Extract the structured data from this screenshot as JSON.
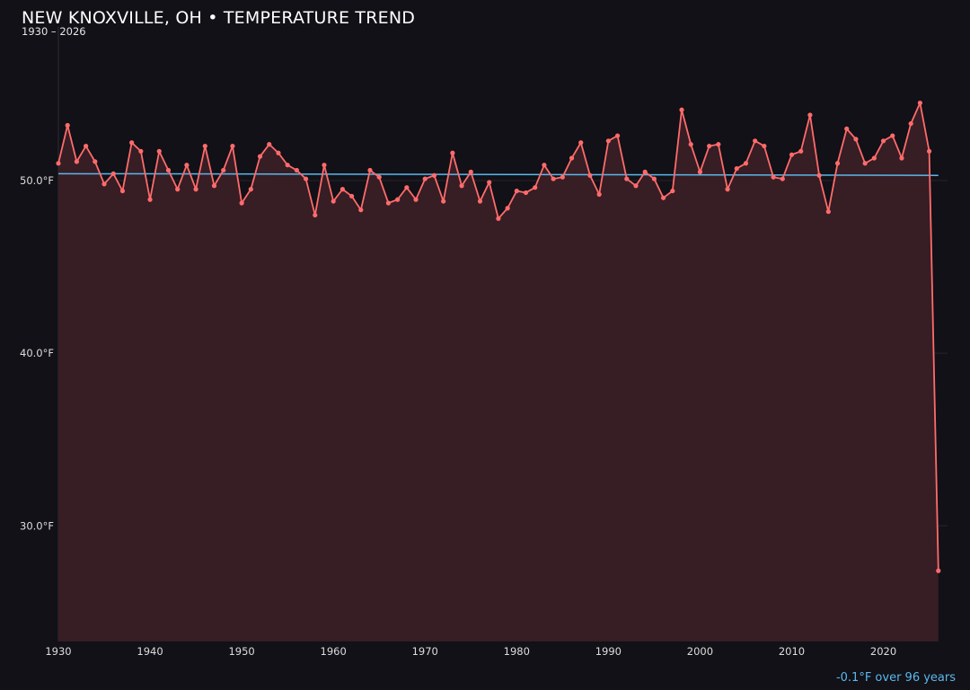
{
  "chart_data": {
    "type": "line",
    "title": "NEW KNOXVILLE, OH • TEMPERATURE TREND",
    "subtitle": "1930 – 2026",
    "annotation": "-0.1°F over 96 years",
    "xlabel": "",
    "ylabel": "",
    "xlim": [
      1930,
      2027
    ],
    "ylim": [
      23.3,
      58.9
    ],
    "x_ticks": [
      1930,
      1940,
      1950,
      1960,
      1970,
      1980,
      1990,
      2000,
      2010,
      2020
    ],
    "y_ticks": [
      30,
      40,
      50
    ],
    "y_tick_labels": [
      "30.0°F",
      "40.0°F",
      "50.0°F"
    ],
    "grid": true,
    "colors": {
      "series": "#ff6b6b",
      "fill": "#3a1f25",
      "trend": "#5bb8ec",
      "background": "#111117"
    },
    "x": [
      1930,
      1931,
      1932,
      1933,
      1934,
      1935,
      1936,
      1937,
      1938,
      1939,
      1940,
      1941,
      1942,
      1943,
      1944,
      1945,
      1946,
      1947,
      1948,
      1949,
      1950,
      1951,
      1952,
      1953,
      1954,
      1955,
      1956,
      1957,
      1958,
      1959,
      1960,
      1961,
      1962,
      1963,
      1964,
      1965,
      1966,
      1967,
      1968,
      1969,
      1970,
      1971,
      1972,
      1973,
      1974,
      1975,
      1976,
      1977,
      1978,
      1979,
      1980,
      1981,
      1982,
      1983,
      1984,
      1985,
      1986,
      1987,
      1988,
      1989,
      1990,
      1991,
      1992,
      1993,
      1994,
      1995,
      1996,
      1997,
      1998,
      1999,
      2000,
      2001,
      2002,
      2003,
      2004,
      2005,
      2006,
      2007,
      2008,
      2009,
      2010,
      2011,
      2012,
      2013,
      2014,
      2015,
      2016,
      2017,
      2018,
      2019,
      2020,
      2021,
      2022,
      2023,
      2024,
      2025,
      2026
    ],
    "series": [
      {
        "values": [
          51.0,
          53.2,
          51.1,
          52.0,
          51.1,
          49.8,
          50.4,
          49.4,
          52.2,
          51.7,
          48.9,
          51.7,
          50.6,
          49.5,
          50.9,
          49.5,
          52.0,
          49.7,
          50.6,
          52.0,
          48.7,
          49.5,
          51.4,
          52.1,
          51.6,
          50.9,
          50.6,
          50.1,
          48.0,
          50.9,
          48.8,
          49.5,
          49.1,
          48.3,
          50.6,
          50.2,
          48.7,
          48.9,
          49.6,
          48.9,
          50.1,
          50.3,
          48.8,
          51.6,
          49.7,
          50.5,
          48.8,
          49.9,
          47.8,
          48.4,
          49.4,
          49.3,
          49.6,
          50.9,
          50.1,
          50.2,
          51.3,
          52.2,
          50.3,
          49.2,
          52.3,
          52.6,
          50.1,
          49.7,
          50.5,
          50.1,
          49.0,
          49.4,
          54.1,
          52.1,
          50.5,
          52.0,
          52.1,
          49.5,
          50.7,
          51.0,
          52.3,
          52.0,
          50.2,
          50.1,
          51.5,
          51.7,
          53.8,
          50.3,
          48.2,
          51.0,
          53.0,
          52.4,
          51.0,
          51.3,
          52.3,
          52.6,
          51.3,
          53.3,
          54.5,
          51.7,
          27.4
        ]
      }
    ],
    "trend_line": {
      "x": [
        1930,
        2026
      ],
      "y": [
        50.4,
        50.3
      ]
    }
  }
}
